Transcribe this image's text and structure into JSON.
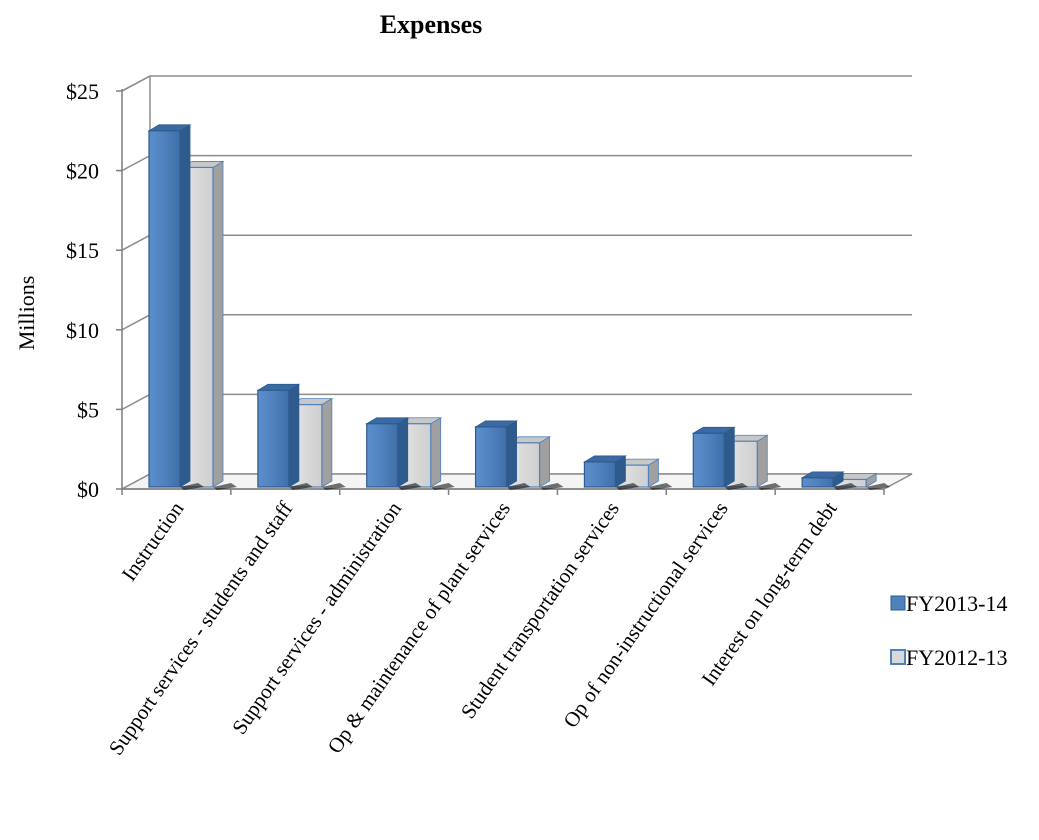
{
  "chart_data": {
    "type": "bar",
    "title": "Expenses",
    "xlabel": "",
    "ylabel": "Millions",
    "ylim": [
      0,
      25
    ],
    "yticks": [
      0,
      5,
      10,
      15,
      20,
      25
    ],
    "ytick_labels": [
      "$0",
      "$5",
      "$10",
      "$15",
      "$20",
      "$25"
    ],
    "categories": [
      "Instruction",
      "Support services - students and staff",
      "Support services - administration",
      "Op & maintenance of plant services",
      "Student transportation services",
      "Op of non-instructional services",
      "Interest on long-term debt"
    ],
    "series": [
      {
        "name": "FY2013-14",
        "values": [
          22.5,
          6.2,
          4.1,
          3.9,
          1.7,
          3.5,
          0.7
        ],
        "color": "#4F81BD"
      },
      {
        "name": "FY2012-13",
        "values": [
          20.2,
          5.3,
          4.1,
          2.9,
          1.5,
          3.0,
          0.6
        ],
        "color": "#D9D9D9"
      }
    ],
    "grid": true,
    "legend_position": "bottom-right",
    "style": "3d-clustered-column"
  }
}
